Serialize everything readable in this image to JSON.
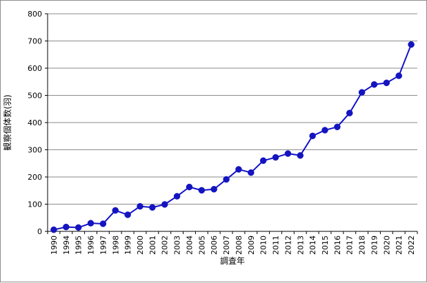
{
  "chart_data": {
    "type": "line",
    "title": "",
    "xlabel": "調査年",
    "ylabel": "観察個体数(羽)",
    "ylim": [
      0,
      800
    ],
    "y_ticks": [
      0,
      100,
      200,
      300,
      400,
      500,
      600,
      700,
      800
    ],
    "grid": "horizontal",
    "legend": "none",
    "colors": {
      "line": "#1010c8",
      "marker": "#1414c0",
      "grid": "#8a8a8a",
      "axis": "#000000"
    },
    "categories": [
      "1990",
      "1994",
      "1995",
      "1996",
      "1997",
      "1998",
      "1999",
      "2000",
      "2001",
      "2002",
      "2003",
      "2004",
      "2005",
      "2006",
      "2007",
      "2008",
      "2009",
      "2010",
      "2011",
      "2012",
      "2013",
      "2014",
      "2015",
      "2016",
      "2017",
      "2018",
      "2019",
      "2020",
      "2021",
      "2022"
    ],
    "series": [
      {
        "values": [
          6,
          16,
          14,
          30,
          28,
          77,
          61,
          92,
          88,
          99,
          129,
          163,
          151,
          155,
          191,
          228,
          216,
          260,
          272,
          286,
          279,
          351,
          372,
          384,
          435,
          511,
          540,
          546,
          572,
          687
        ]
      }
    ]
  }
}
